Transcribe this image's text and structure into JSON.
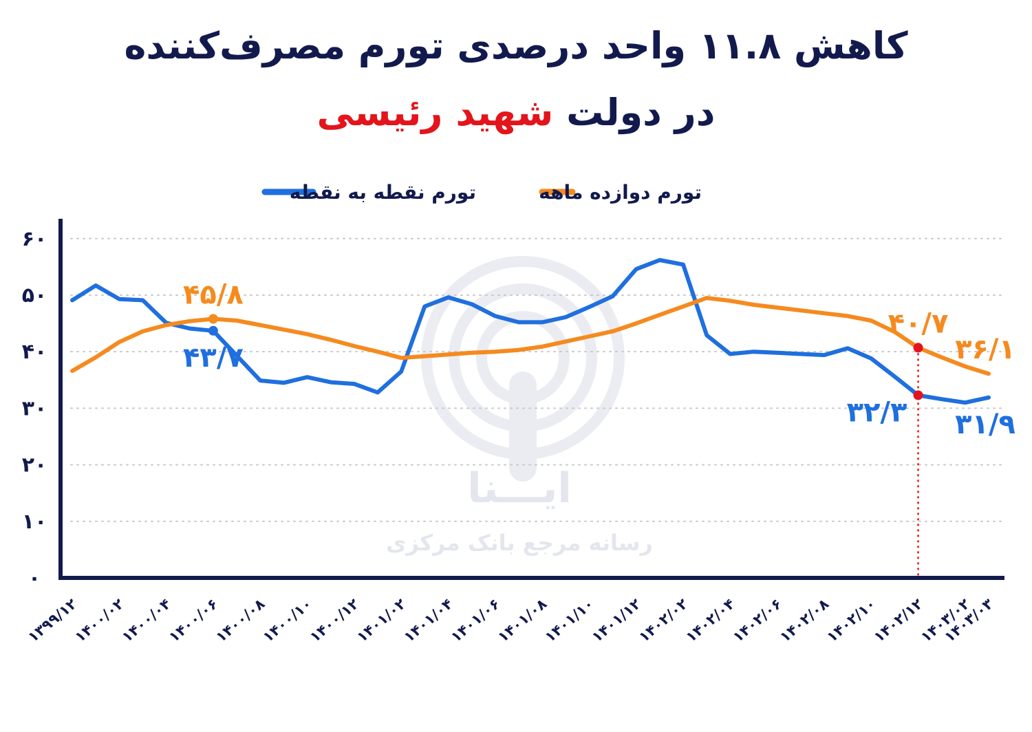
{
  "chart_data": {
    "type": "line",
    "title": "کاهش ۱۱.۸ واحد درصدی تورم مصرف‌کننده",
    "subtitle": "در دولت",
    "subtitle_highlight": "شهید رئیسی",
    "watermark": [
      "ایـــنا",
      "رسانه مرجع بانک مرکزی"
    ],
    "categories": [
      "۱۳۹۹/۱۲",
      null,
      "۱۴۰۰/۰۲",
      null,
      "۱۴۰۰/۰۴",
      null,
      "۱۴۰۰/۰۶",
      null,
      "۱۴۰۰/۰۸",
      null,
      "۱۴۰۰/۱۰",
      null,
      "۱۴۰۰/۱۲",
      null,
      "۱۴۰۱/۰۲",
      null,
      "۱۴۰۱/۰۴",
      null,
      "۱۴۰۱/۰۶",
      null,
      "۱۴۰۱/۰۸",
      null,
      "۱۴۰۱/۱۰",
      null,
      "۱۴۰۱/۱۲",
      null,
      "۱۴۰۲/۰۲",
      null,
      "۱۴۰۲/۰۴",
      null,
      "۱۴۰۲/۰۶",
      null,
      "۱۴۰۲/۰۸",
      null,
      "۱۴۰۲/۱۰",
      null,
      "۱۴۰۲/۱۲",
      null,
      "۱۴۰۳/۰۲",
      "۱۴۰۳/۰۳"
    ],
    "series": [
      {
        "name": "تورم دوازده ماهه",
        "color": "#f58a1f",
        "values": [
          36.6,
          39.0,
          41.7,
          43.6,
          44.7,
          45.4,
          45.8,
          45.5,
          44.7,
          43.9,
          43.1,
          42.1,
          41.0,
          40.0,
          38.9,
          39.2,
          39.5,
          39.8,
          40.0,
          40.3,
          40.9,
          41.8,
          42.7,
          43.6,
          45.0,
          46.5,
          48.0,
          49.5,
          49.0,
          48.3,
          47.8,
          47.3,
          46.8,
          46.3,
          45.5,
          43.5,
          40.7,
          39.0,
          37.4,
          36.1
        ],
        "value_labels": [
          null,
          null,
          null,
          null,
          null,
          null,
          "۴۵/۸",
          null,
          null,
          null,
          null,
          null,
          null,
          null,
          null,
          null,
          null,
          null,
          null,
          null,
          null,
          null,
          null,
          null,
          null,
          null,
          null,
          null,
          null,
          null,
          null,
          null,
          null,
          null,
          null,
          null,
          "۴۰/۷",
          null,
          null,
          "۳۶/۱"
        ]
      },
      {
        "name": "تورم نقطه به نقطه",
        "color": "#1f6fde",
        "values": [
          49.1,
          51.7,
          49.3,
          49.1,
          45.1,
          44.1,
          43.7,
          39.3,
          34.9,
          34.5,
          35.5,
          34.6,
          34.3,
          32.8,
          36.5,
          48.0,
          49.6,
          48.4,
          46.3,
          45.2,
          45.2,
          46.1,
          47.9,
          49.8,
          54.6,
          56.2,
          55.4,
          42.9,
          39.6,
          40.0,
          39.8,
          39.6,
          39.4,
          40.6,
          38.8,
          35.6,
          32.3,
          31.6,
          31.0,
          31.9
        ],
        "value_labels": [
          null,
          null,
          null,
          null,
          null,
          null,
          "۴۳/۷",
          null,
          null,
          null,
          null,
          null,
          null,
          null,
          null,
          null,
          null,
          null,
          null,
          null,
          null,
          null,
          null,
          null,
          null,
          null,
          null,
          null,
          null,
          null,
          null,
          null,
          null,
          null,
          null,
          null,
          "۳۲/۳",
          null,
          null,
          "۳۱/۹"
        ]
      }
    ],
    "ylim": [
      0,
      63.5
    ],
    "yticks": [
      {
        "value": 0,
        "label": "۰"
      },
      {
        "value": 10,
        "label": "۱۰"
      },
      {
        "value": 20,
        "label": "۲۰"
      },
      {
        "value": 30,
        "label": "۳۰"
      },
      {
        "value": 40,
        "label": "۴۰"
      },
      {
        "value": 50,
        "label": "۵۰"
      },
      {
        "value": 60,
        "label": "۶۰"
      }
    ],
    "grid": true
  }
}
